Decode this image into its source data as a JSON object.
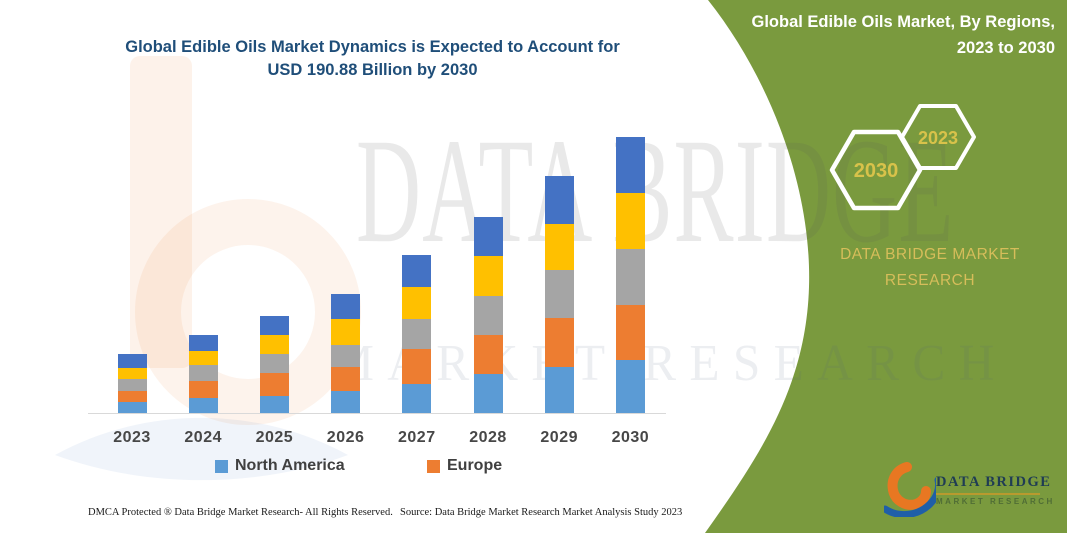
{
  "chart_panel": {
    "title_line1": "Global Edible Oils Market Dynamics is Expected to Account for",
    "title_line2": "USD 190.88 Billion by 2030",
    "footer_left": "DMCA Protected ® Data Bridge Market Research-  All Rights Reserved.",
    "footer_source": "Source: Data Bridge Market Research  Market Analysis Study 2023"
  },
  "side_panel": {
    "heading_line1": "Global Edible Oils Market, By Regions,",
    "heading_line2": "2023 to 2030",
    "hexagons": [
      {
        "label": "2030"
      },
      {
        "label": "2023"
      }
    ],
    "brand_line1": "DATA BRIDGE MARKET",
    "brand_line2": "RESEARCH",
    "bg_color": "#7a9a3e",
    "accent_gold": "#d8c24a"
  },
  "logo": {
    "name": "DATA BRIDGE",
    "subtitle": "MARKET RESEARCH"
  },
  "watermark": {
    "row1": "DATA BRIDGE",
    "row2": "MARKET RESEARCH"
  },
  "chart_data": {
    "type": "bar",
    "variant": "stacked",
    "title": "Global Edible Oils Market Dynamics is Expected to Account for USD 190.88 Billion by 2030",
    "xlabel": "",
    "ylabel": "",
    "value_unit": "USD billion (estimated from bar heights; 2030 total = 190.88)",
    "y_axis_shown": false,
    "gridlines": false,
    "legend_position": "bottom",
    "legend_visible_entries": [
      "North America",
      "Europe"
    ],
    "categories": [
      "2023",
      "2024",
      "2025",
      "2026",
      "2027",
      "2028",
      "2029",
      "2030"
    ],
    "series": [
      {
        "name": "North America",
        "color": "#5B9BD5",
        "labeled_in_legend": true,
        "values": [
          8.5,
          11.0,
          12.6,
          16.1,
          20.7,
          27.6,
          32.6,
          37.0
        ]
      },
      {
        "name": "Europe",
        "color": "#ED7D31",
        "labeled_in_legend": true,
        "values": [
          7.6,
          11.9,
          15.4,
          16.5,
          24.1,
          26.9,
          33.4,
          38.0
        ]
      },
      {
        "name": "unlabeled-gray",
        "color": "#A5A5A5",
        "labeled_in_legend": false,
        "values": [
          8.1,
          10.8,
          13.4,
          15.0,
          20.7,
          27.1,
          33.4,
          38.5
        ]
      },
      {
        "name": "unlabeled-yellow",
        "color": "#FFC000",
        "labeled_in_legend": false,
        "values": [
          7.4,
          9.9,
          13.1,
          17.9,
          22.3,
          27.6,
          31.7,
          38.6
        ]
      },
      {
        "name": "unlabeled-blue",
        "color": "#4472C4",
        "labeled_in_legend": false,
        "values": [
          9.7,
          10.8,
          13.1,
          17.0,
          21.6,
          26.9,
          32.8,
          38.8
        ]
      }
    ],
    "totals": [
      41.3,
      54.4,
      67.6,
      82.5,
      109.4,
      136.1,
      163.9,
      190.88
    ]
  }
}
